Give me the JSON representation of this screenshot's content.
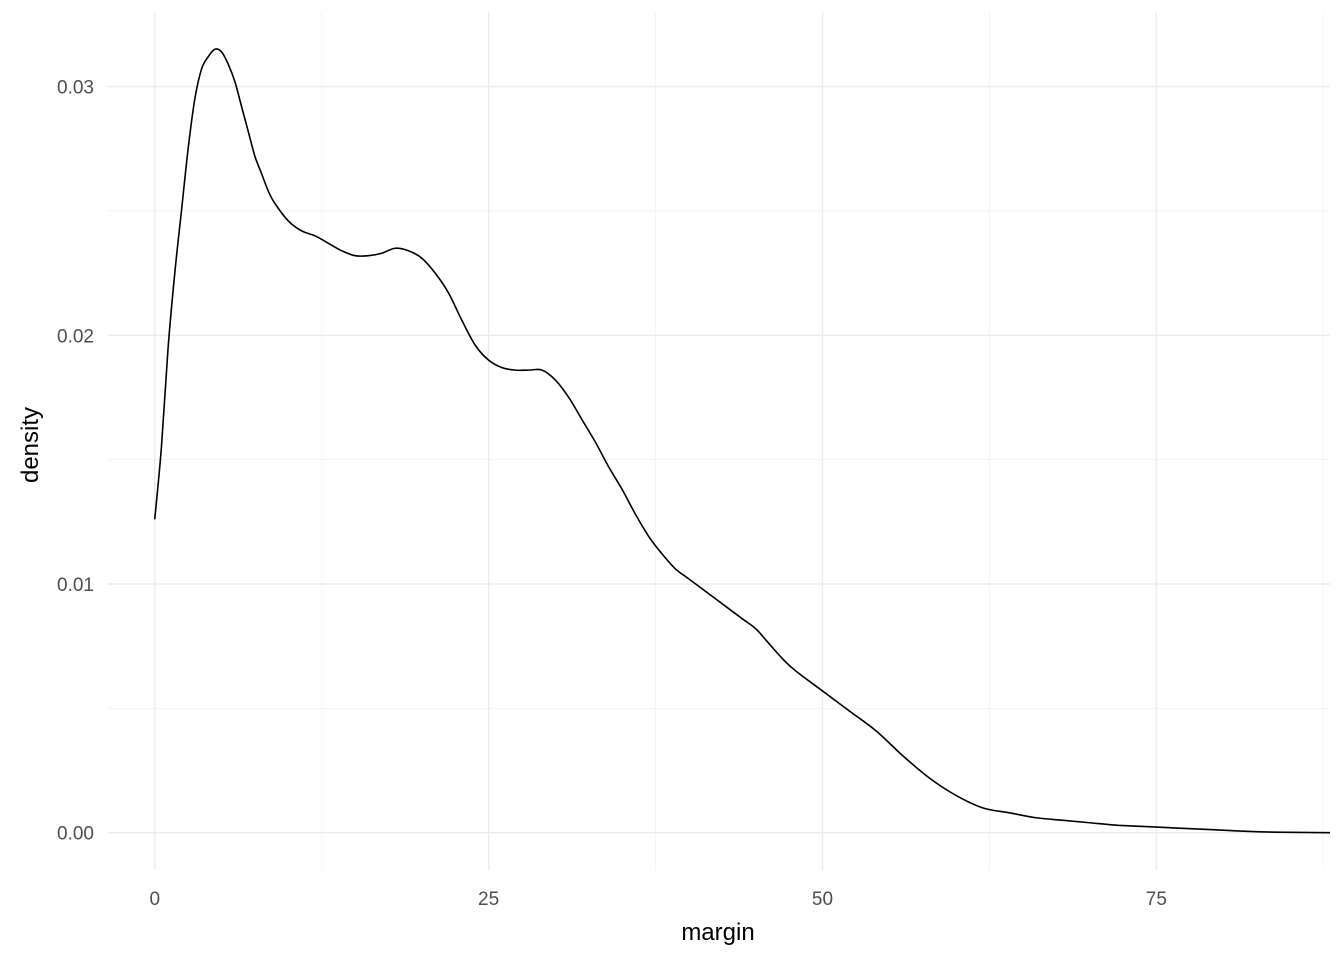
{
  "chart_data": {
    "type": "line",
    "title": "",
    "xlabel": "margin",
    "ylabel": "density",
    "xlim": [
      -3.5,
      88
    ],
    "ylim": [
      -0.0015,
      0.033
    ],
    "x_ticks": [
      0,
      25,
      50,
      75
    ],
    "x_tick_labels": [
      "0",
      "25",
      "50",
      "75"
    ],
    "x_minor_ticks": [
      12.5,
      37.5,
      62.5,
      87.5
    ],
    "y_ticks": [
      0,
      0.01,
      0.02,
      0.03
    ],
    "y_tick_labels": [
      "0.00",
      "0.01",
      "0.02",
      "0.03"
    ],
    "y_minor_ticks": [
      0.005,
      0.015,
      0.025
    ],
    "grid": true,
    "legend": "none",
    "line_color": "#000000",
    "series": [
      {
        "x": [
          0,
          0.5,
          1,
          1.5,
          2,
          2.5,
          3,
          3.5,
          4,
          4.5,
          5,
          5.5,
          6,
          6.5,
          7,
          7.5,
          8,
          8.5,
          9,
          10,
          11,
          12,
          13,
          14,
          15,
          16,
          17,
          18,
          19,
          20,
          21,
          22,
          23,
          24,
          25,
          26,
          27,
          28,
          29,
          30,
          31,
          32,
          33,
          34,
          35,
          36,
          37,
          38,
          39,
          40,
          42,
          44,
          45,
          46,
          47,
          48,
          50,
          52,
          54,
          56,
          58,
          60,
          62,
          64,
          66,
          68,
          70,
          72,
          74,
          76,
          78,
          80,
          82,
          84,
          86,
          88
        ],
        "y": [
          0.0126,
          0.0155,
          0.0195,
          0.0225,
          0.025,
          0.0275,
          0.0295,
          0.0307,
          0.0312,
          0.0315,
          0.0314,
          0.0309,
          0.0302,
          0.0292,
          0.0282,
          0.0272,
          0.0265,
          0.0258,
          0.0253,
          0.0246,
          0.0242,
          0.024,
          0.0237,
          0.0234,
          0.0232,
          0.0232,
          0.0233,
          0.0235,
          0.0234,
          0.0231,
          0.0225,
          0.0217,
          0.0206,
          0.0196,
          0.019,
          0.0187,
          0.0186,
          0.0186,
          0.0186,
          0.0182,
          0.0175,
          0.0166,
          0.0157,
          0.0147,
          0.0138,
          0.0128,
          0.0119,
          0.0112,
          0.0106,
          0.0102,
          0.0094,
          0.0086,
          0.0082,
          0.0076,
          0.007,
          0.0065,
          0.0057,
          0.0049,
          0.0041,
          0.0031,
          0.0022,
          0.0015,
          0.001,
          0.0008,
          0.0006,
          0.0005,
          0.0004,
          0.0003,
          0.00025,
          0.0002,
          0.00015,
          0.0001,
          5e-05,
          2e-05,
          1e-05,
          0.0
        ]
      }
    ]
  }
}
